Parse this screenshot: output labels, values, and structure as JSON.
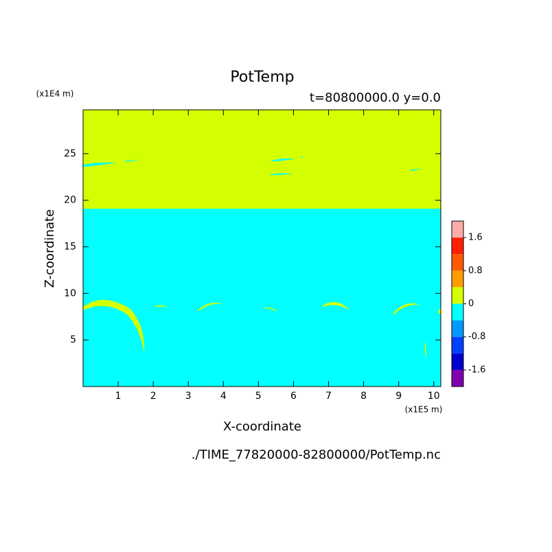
{
  "chart_data": {
    "type": "contour",
    "title": "PotTemp",
    "subtitle": "t=80800000.0 y=0.0",
    "xlabel": "X-coordinate",
    "ylabel": "Z-coordinate",
    "xunit": "(x1E5 m)",
    "yunit": "(x1E4 m)",
    "footer": "./TIME_77820000-82800000/PotTemp.nc",
    "xlim": [
      0,
      10.2
    ],
    "ylim": [
      0,
      29.7
    ],
    "xticks": [
      1,
      2,
      3,
      4,
      5,
      6,
      7,
      8,
      9,
      10
    ],
    "yticks": [
      5,
      10,
      15,
      20,
      25
    ],
    "colorbar": {
      "clim": [
        -2,
        2
      ],
      "ticks": [
        1.6,
        0.8,
        0,
        -0.8,
        -1.6
      ],
      "colors": [
        "#ffaaaa",
        "#ff2000",
        "#ff5a00",
        "#ff9d00",
        "#d4ff00",
        "#00ffff",
        "#0099ff",
        "#0040ff",
        "#0000cc",
        "#8000b0"
      ]
    }
  }
}
